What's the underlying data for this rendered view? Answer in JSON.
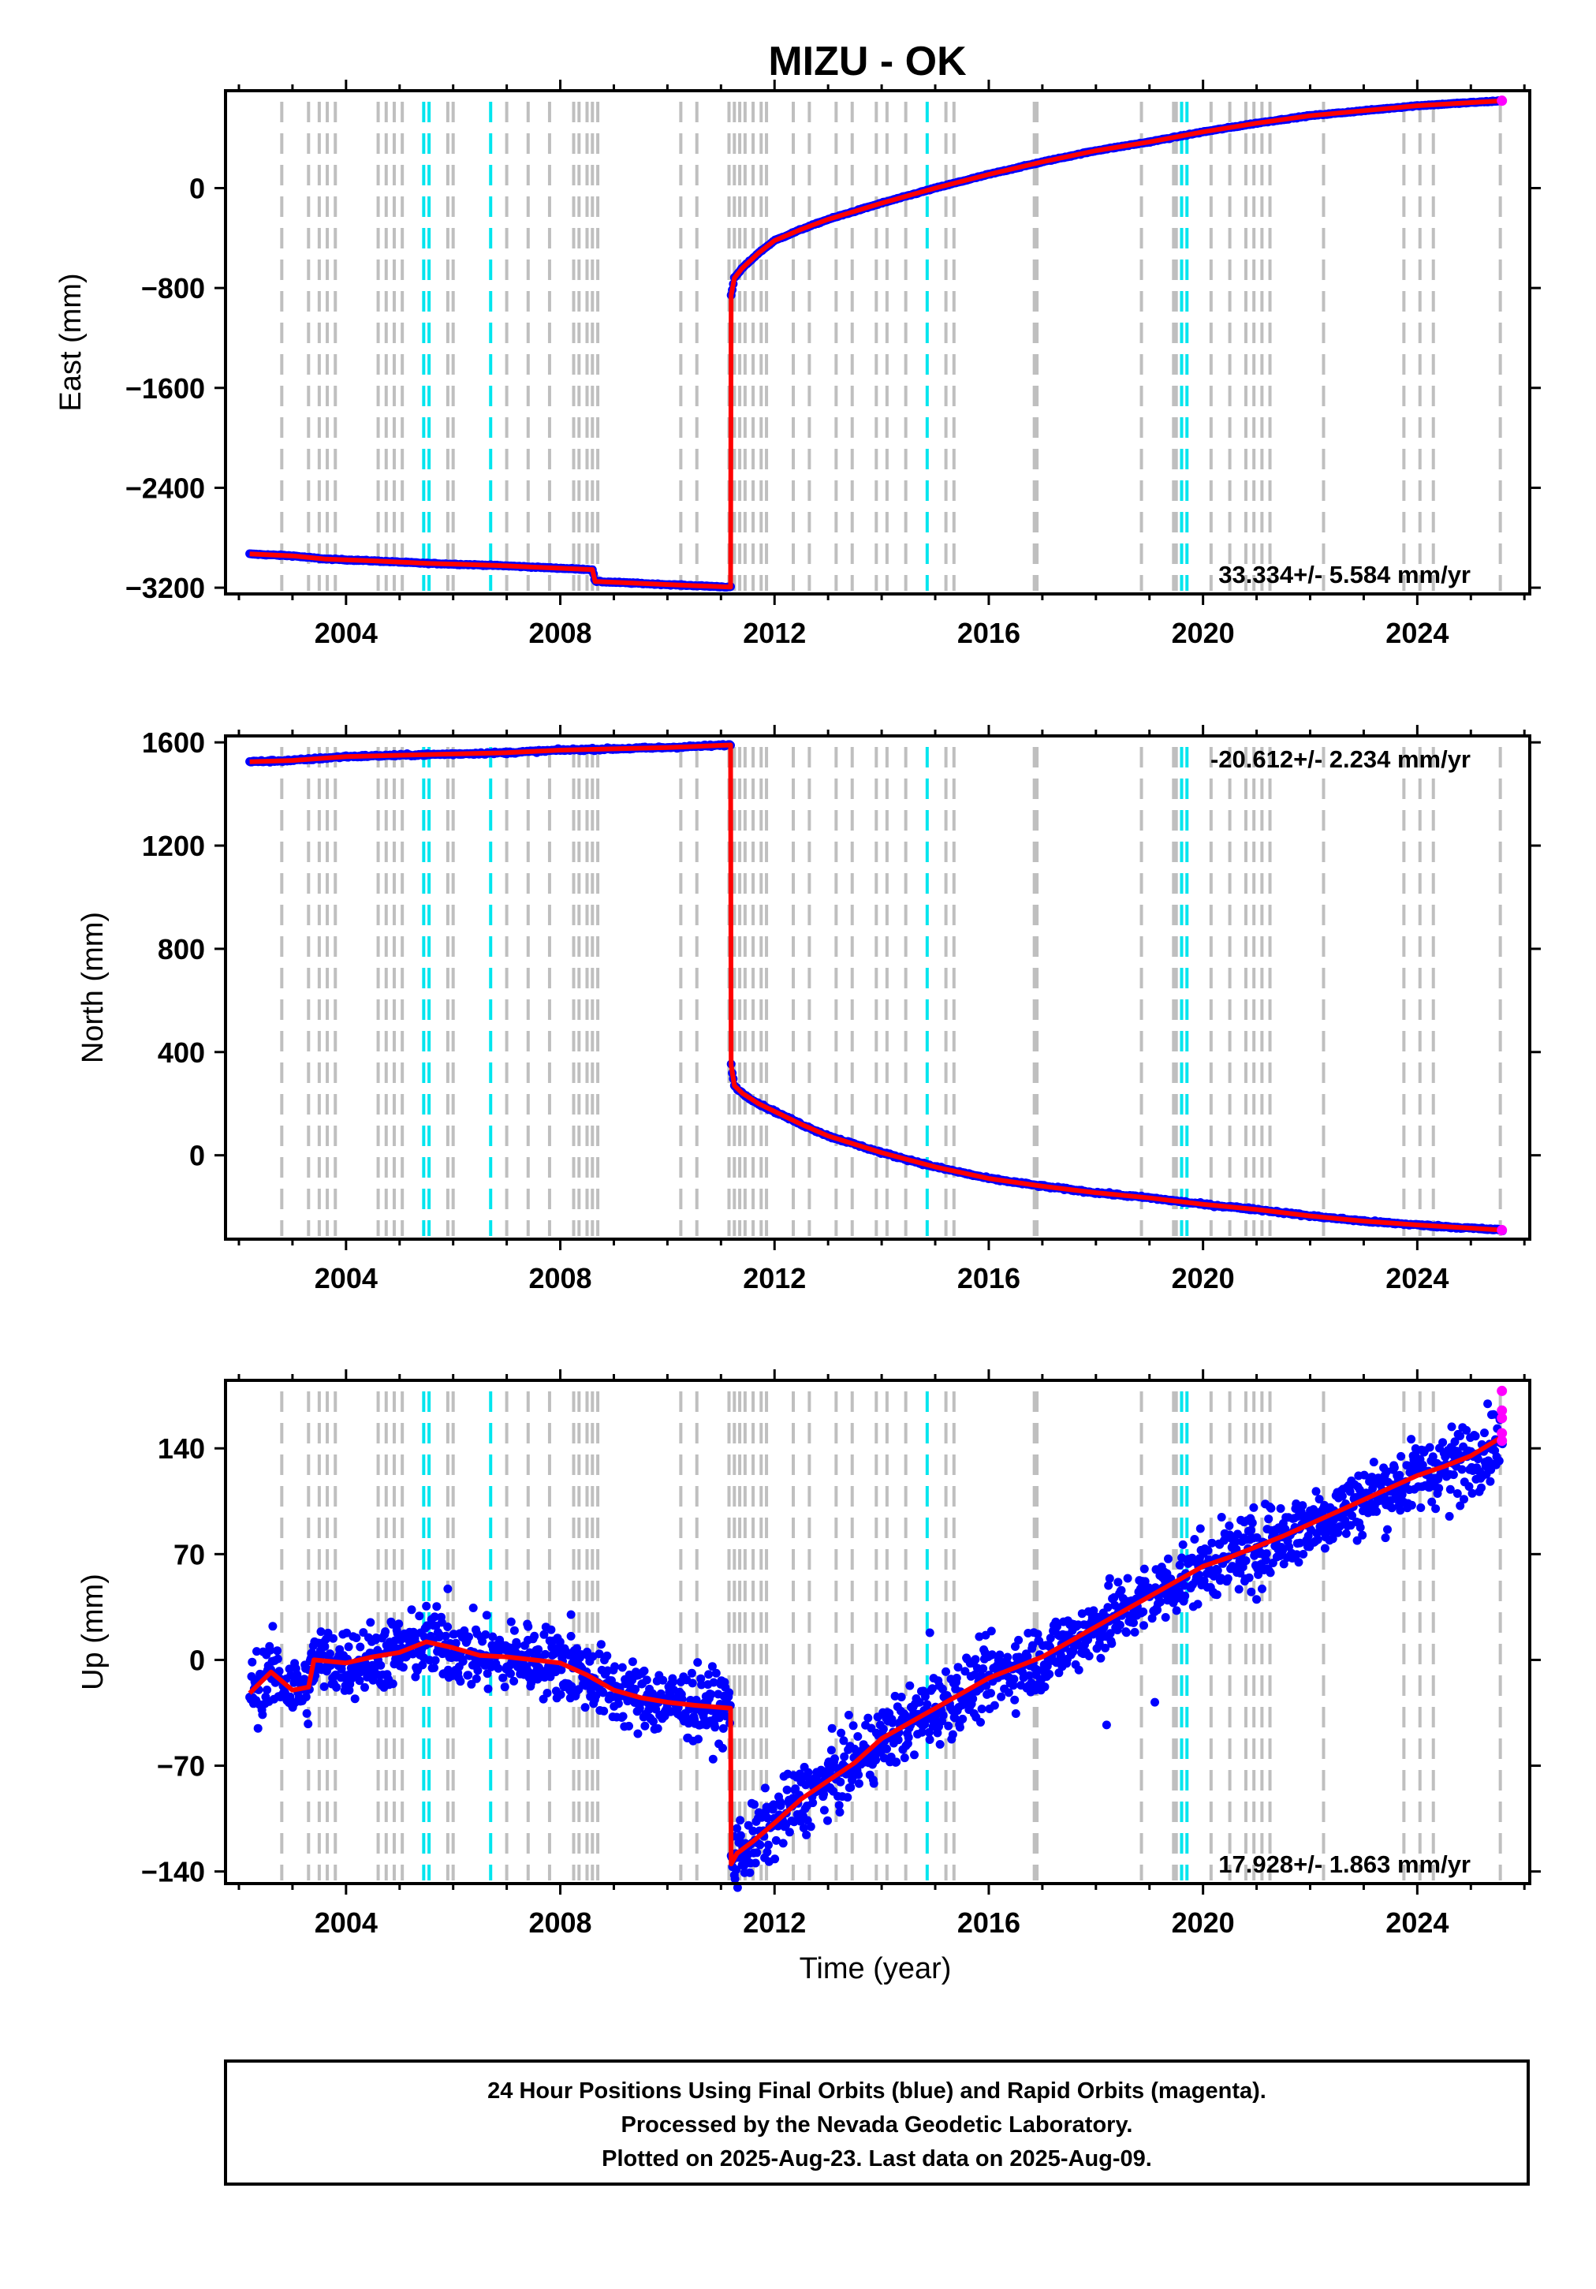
{
  "title": "MIZU - OK",
  "colors": {
    "final": "#0000ff",
    "rapid": "#ff00ff",
    "trend": "#ff0000",
    "equipment_change": "#bfbfbf",
    "earthquake": "#00e5ee"
  },
  "x_axis": {
    "label": "Time (year)",
    "range": [
      2001.75,
      2026.1
    ],
    "ticks": [
      "2004",
      "2008",
      "2012",
      "2016",
      "2020",
      "2024"
    ]
  },
  "event_lines": {
    "gray": [
      2002.8,
      2003.3,
      2003.5,
      2003.65,
      2003.8,
      2004.6,
      2004.75,
      2004.9,
      2005.05,
      2005.9,
      2006.0,
      2007.0,
      2007.4,
      2007.8,
      2008.25,
      2008.35,
      2008.5,
      2008.6,
      2008.7,
      2010.25,
      2010.55,
      2011.15,
      2011.25,
      2011.35,
      2011.45,
      2011.6,
      2011.75,
      2011.85,
      2012.35,
      2012.65,
      2013.15,
      2013.45,
      2013.9,
      2014.1,
      2014.45,
      2015.2,
      2015.35,
      2016.85,
      2016.9,
      2018.85,
      2019.45,
      2019.5,
      2020.15,
      2020.5,
      2020.8,
      2020.95,
      2021.1,
      2021.25,
      2022.25,
      2023.75,
      2024.05,
      2024.3,
      2025.55
    ],
    "cyan": [
      2005.45,
      2005.55,
      2006.7,
      2014.85,
      2019.6,
      2019.7
    ]
  },
  "chart_data": [
    {
      "type": "scatter",
      "name": "east",
      "ylabel": "East (mm)",
      "ylim": [
        -3250,
        780
      ],
      "yticks": [
        {
          "value": 0,
          "label": "0"
        },
        {
          "value": -800,
          "label": "−800"
        },
        {
          "value": -1600,
          "label": "−1600"
        },
        {
          "value": -2400,
          "label": "−2400"
        },
        {
          "value": -3200,
          "label": "−3200"
        }
      ],
      "rate": "33.334+/- 5.584 mm/yr",
      "rate_position": "bottom-right",
      "noise": 4,
      "trend": {
        "x": [
          2002.2,
          2003.0,
          2003.6,
          2004.5,
          2005.5,
          2006.3,
          2007.0,
          2007.5,
          2008.6,
          2008.65,
          2010.0,
          2011.18
        ],
        "y": [
          -2930,
          -2945,
          -2970,
          -2985,
          -3005,
          -3015,
          -3025,
          -3035,
          -3055,
          -3150,
          -3175,
          -3195
        ]
      },
      "post_trend": {
        "x": [
          2011.19,
          2011.25,
          2011.4,
          2011.7,
          2012.0,
          2012.5,
          2013.0,
          2014.0,
          2015.0,
          2016.0,
          2017.0,
          2018.0,
          2019.0,
          2020.0,
          2021.0,
          2022.0,
          2023.0,
          2024.0,
          2025.6
        ],
        "y": [
          -860,
          -720,
          -640,
          -520,
          -420,
          -330,
          -250,
          -120,
          0,
          110,
          210,
          300,
          370,
          450,
          520,
          580,
          620,
          660,
          700
        ]
      },
      "rapid": [
        {
          "x": 2025.58,
          "y": 700
        }
      ],
      "jump_x": 2011.18
    },
    {
      "type": "scatter",
      "name": "north",
      "ylabel": "North (mm)",
      "ylim": [
        -325,
        1625
      ],
      "yticks": [
        {
          "value": 1600,
          "label": "1600"
        },
        {
          "value": 1200,
          "label": "1200"
        },
        {
          "value": 800,
          "label": "800"
        },
        {
          "value": 400,
          "label": "400"
        },
        {
          "value": 0,
          "label": "0"
        }
      ],
      "rate": "-20.612+/- 2.234 mm/yr",
      "rate_position": "top-right",
      "noise": 4,
      "trend": {
        "x": [
          2002.2,
          2003.0,
          2004.0,
          2005.0,
          2006.0,
          2007.0,
          2008.0,
          2009.0,
          2010.0,
          2011.18
        ],
        "y": [
          1525,
          1530,
          1545,
          1550,
          1555,
          1560,
          1570,
          1575,
          1580,
          1590
        ]
      },
      "post_trend": {
        "x": [
          2011.19,
          2011.25,
          2011.4,
          2011.7,
          2012.0,
          2012.5,
          2013.0,
          2014.0,
          2015.0,
          2016.0,
          2017.0,
          2018.0,
          2019.0,
          2020.0,
          2021.0,
          2022.0,
          2023.0,
          2024.0,
          2025.6
        ],
        "y": [
          350,
          270,
          240,
          200,
          170,
          120,
          75,
          10,
          -45,
          -90,
          -120,
          -145,
          -165,
          -190,
          -210,
          -235,
          -255,
          -270,
          -290
        ]
      },
      "rapid": [
        {
          "x": 2025.58,
          "y": -290
        }
      ],
      "jump_x": 2011.18
    },
    {
      "type": "scatter",
      "name": "up",
      "ylabel": "Up (mm)",
      "ylim": [
        -148,
        185
      ],
      "yticks": [
        {
          "value": 140,
          "label": "140"
        },
        {
          "value": 70,
          "label": "70"
        },
        {
          "value": 0,
          "label": "0"
        },
        {
          "value": -70,
          "label": "−70"
        },
        {
          "value": -140,
          "label": "−140"
        }
      ],
      "rate": "17.928+/- 1.863 mm/yr",
      "rate_position": "bottom-right",
      "noise": 22,
      "trend": {
        "x": [
          2002.2,
          2002.6,
          2003.0,
          2003.3,
          2003.4,
          2004.0,
          2004.5,
          2005.0,
          2005.5,
          2006.0,
          2006.5,
          2007.0,
          2007.5,
          2008.0,
          2008.5,
          2009.0,
          2009.5,
          2010.0,
          2010.5,
          2011.18
        ],
        "y": [
          -22,
          -8,
          -20,
          -18,
          0,
          -2,
          2,
          5,
          12,
          8,
          3,
          2,
          0,
          -2,
          -10,
          -20,
          -25,
          -28,
          -30,
          -32
        ]
      },
      "post_trend": {
        "x": [
          2011.19,
          2011.3,
          2011.6,
          2012.0,
          2012.5,
          2013.0,
          2013.5,
          2014.0,
          2014.5,
          2015.0,
          2015.5,
          2016.0,
          2016.5,
          2017.0,
          2017.5,
          2018.0,
          2018.5,
          2019.0,
          2019.5,
          2020.0,
          2020.5,
          2021.0,
          2021.5,
          2022.0,
          2022.5,
          2023.0,
          2023.5,
          2024.0,
          2024.5,
          2025.0,
          2025.6
        ],
        "y": [
          -135,
          -128,
          -120,
          -108,
          -92,
          -80,
          -68,
          -52,
          -42,
          -32,
          -22,
          -12,
          -5,
          2,
          12,
          22,
          32,
          42,
          52,
          62,
          68,
          75,
          82,
          90,
          98,
          106,
          114,
          122,
          128,
          135,
          148
        ]
      },
      "rapid": [
        {
          "x": 2025.58,
          "y": 178
        },
        {
          "x": 2025.58,
          "y": 165
        },
        {
          "x": 2025.58,
          "y": 160
        },
        {
          "x": 2025.58,
          "y": 150
        },
        {
          "x": 2025.58,
          "y": 145
        }
      ],
      "jump_x": 2011.18
    }
  ],
  "footer": {
    "line1": "24 Hour Positions Using Final Orbits (blue) and Rapid Orbits (magenta).",
    "line2": "Processed by the Nevada Geodetic Laboratory.",
    "line3": "Plotted on 2025-Aug-23. Last data on 2025-Aug-09."
  }
}
